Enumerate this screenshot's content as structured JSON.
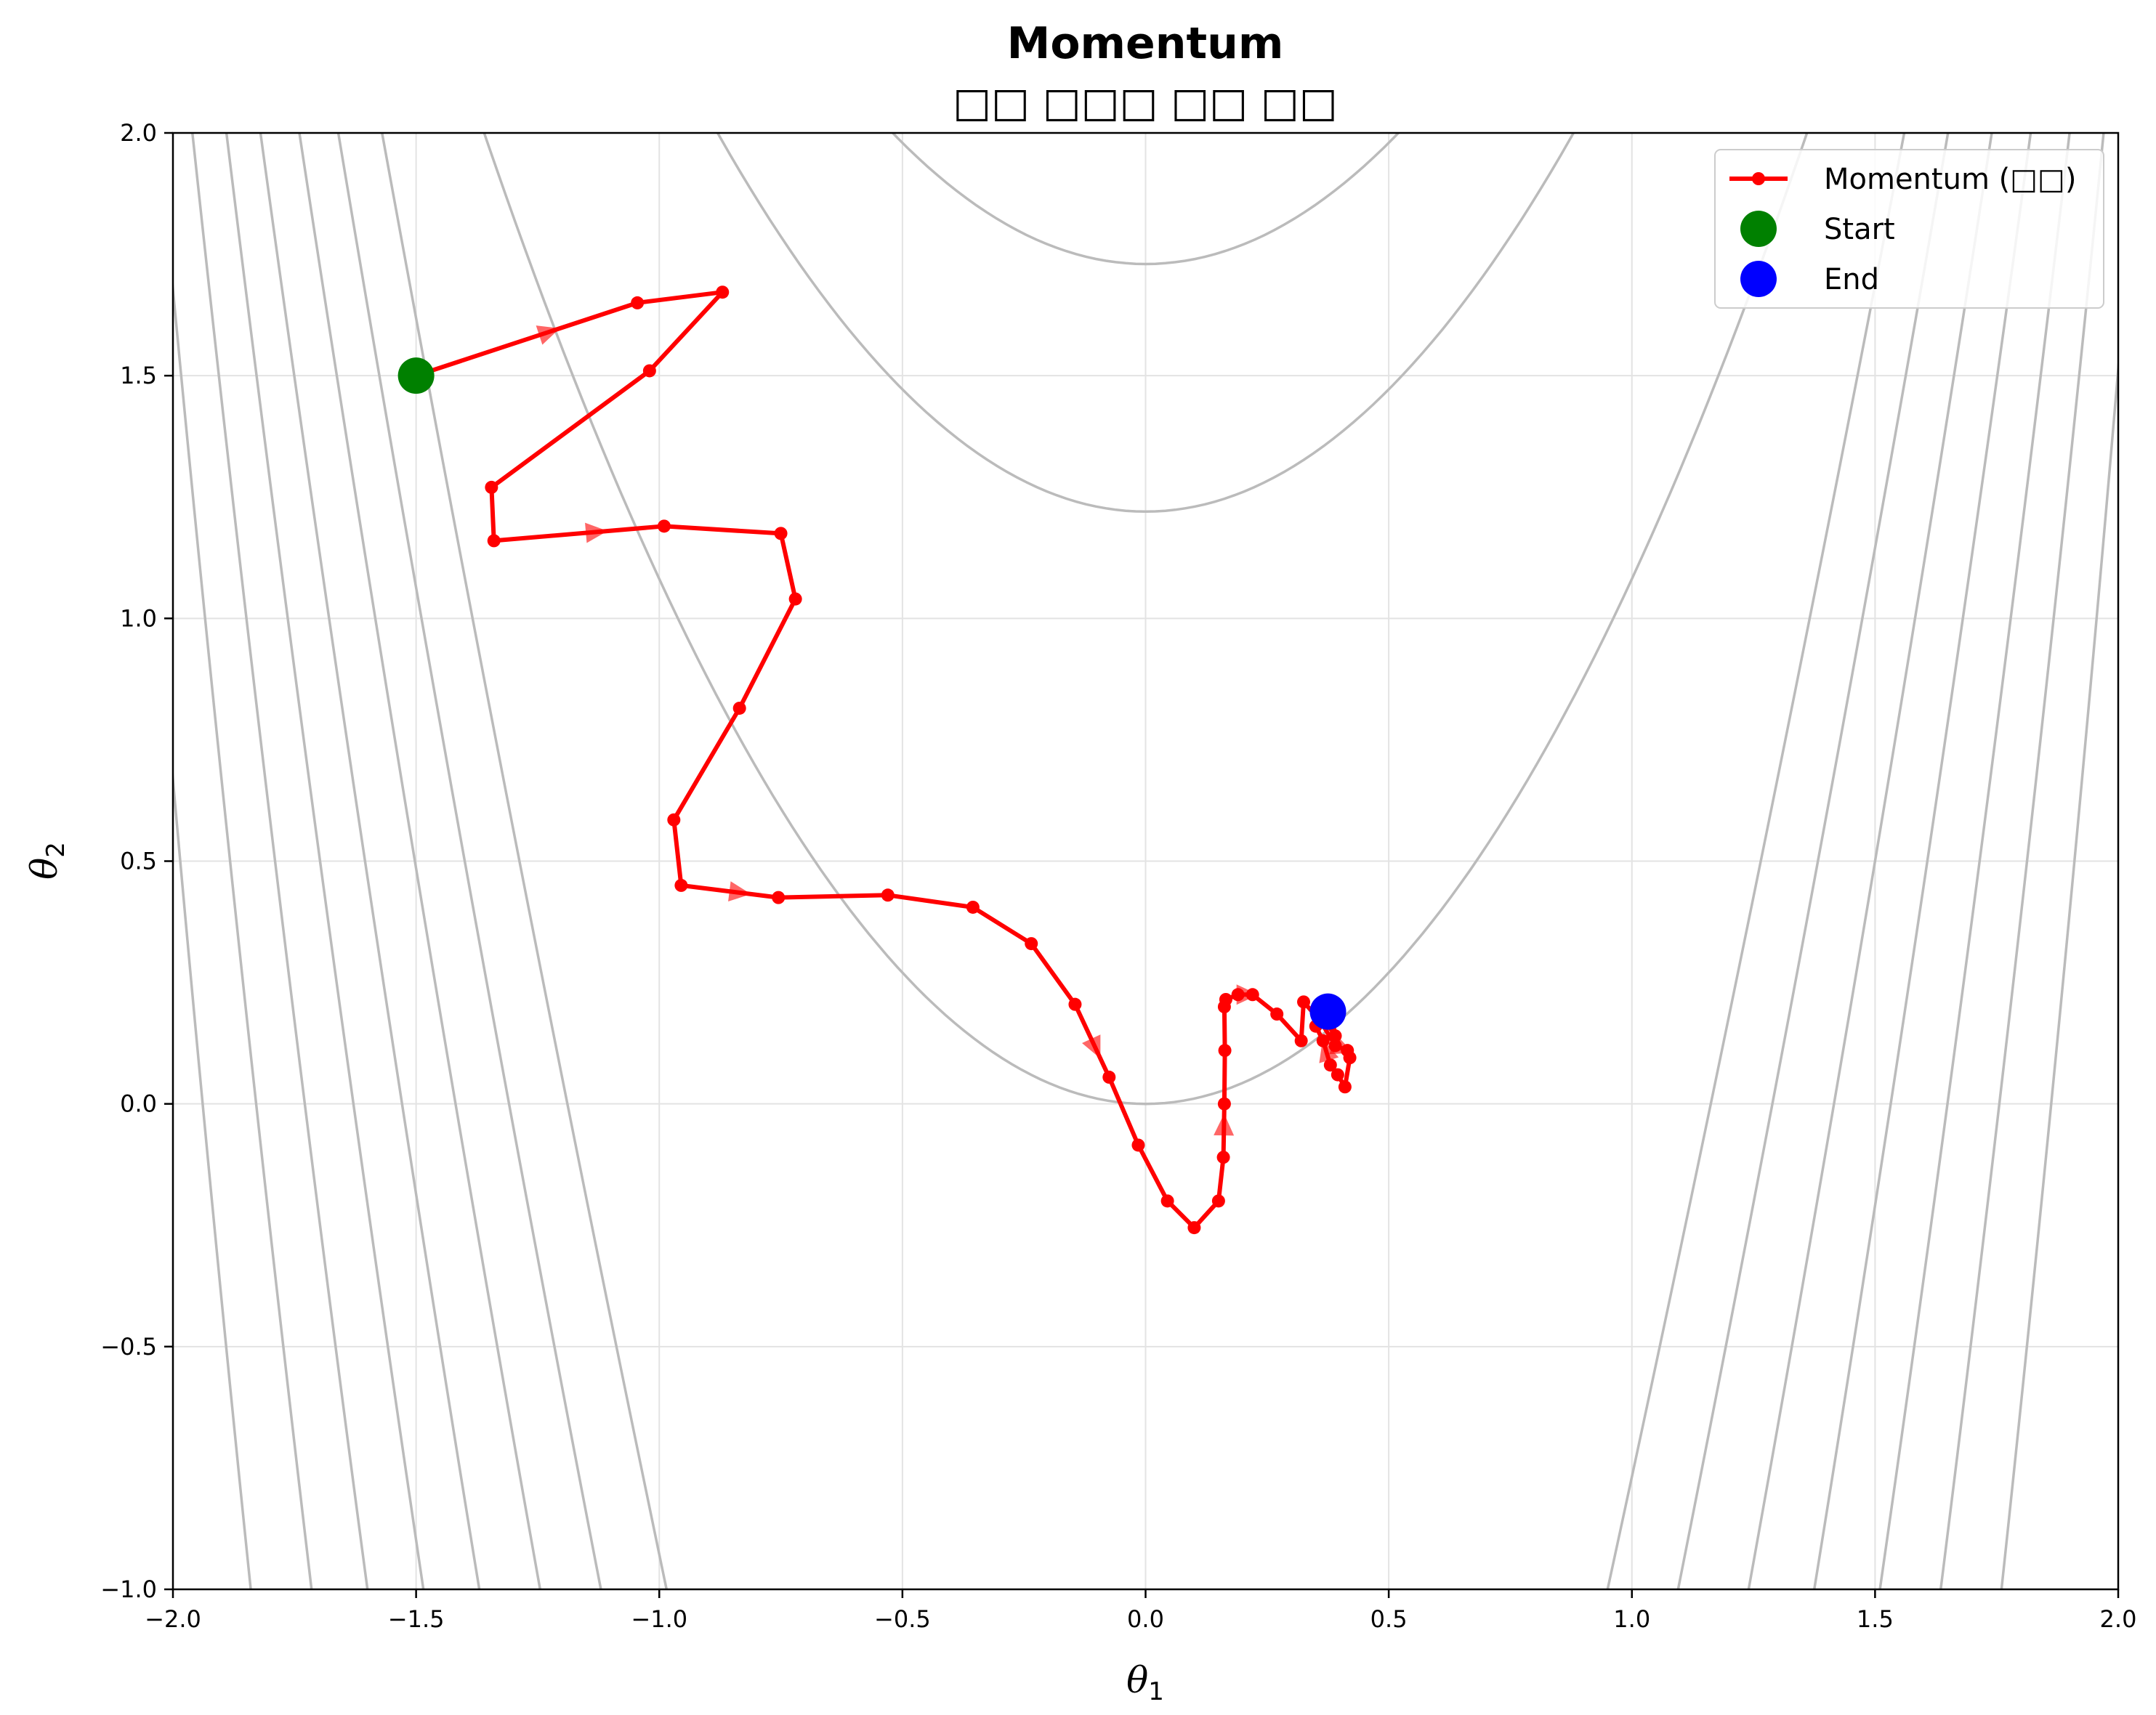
{
  "chart_data": {
    "type": "line",
    "title": "Momentum",
    "subtitle": "□□ □□□ □□ □□",
    "xlabel_symbol": "θ",
    "xlabel_subscript": "1",
    "ylabel_symbol": "θ",
    "ylabel_subscript": "2",
    "xlim": [
      -2.0,
      2.0
    ],
    "ylim": [
      -1.0,
      2.0
    ],
    "xticks": [
      -2.0,
      -1.5,
      -1.0,
      -0.5,
      0.0,
      0.5,
      1.0,
      1.5,
      2.0
    ],
    "xtick_labels": [
      "−2.0",
      "−1.5",
      "−1.0",
      "−0.5",
      "0.0",
      "0.5",
      "1.0",
      "1.5",
      "2.0"
    ],
    "yticks": [
      -1.0,
      -0.5,
      0.0,
      0.5,
      1.0,
      1.5,
      2.0
    ],
    "ytick_labels": [
      "−1.0",
      "−0.5",
      "0.0",
      "0.5",
      "1.0",
      "1.5",
      "2.0"
    ],
    "grid": true,
    "legend_position": "top-right",
    "legend": [
      {
        "label": "Momentum (□□)",
        "kind": "line-marker",
        "color": "#ff0000"
      },
      {
        "label": "Start",
        "kind": "marker",
        "color": "#008000"
      },
      {
        "label": "End",
        "kind": "marker",
        "color": "#0000ff"
      }
    ],
    "background_contours": {
      "color": "#bbbbbb",
      "function": "rosenbrock-like valley, centered near theta1 = 0",
      "levels": [
        {
          "type": "parabola",
          "vertex_y": 1.73,
          "x_at_top": 0.52
        },
        {
          "type": "parabola",
          "vertex_y": 1.22,
          "x_at_top": 0.88
        },
        {
          "type": "parabola",
          "vertex_y": 0.0,
          "x_at_top": 1.36
        }
      ]
    },
    "series": [
      {
        "name": "Momentum (□□)",
        "color": "#ff0000",
        "x": [
          -1.5,
          -1.045,
          -0.87,
          -1.02,
          -1.345,
          -1.34,
          -0.99,
          -0.75,
          -0.72,
          -0.835,
          -0.97,
          -0.955,
          -0.755,
          -0.53,
          -0.355,
          -0.235,
          -0.145,
          -0.075,
          -0.015,
          0.045,
          0.1,
          0.15,
          0.16,
          0.162,
          0.163,
          0.162,
          0.165,
          0.19,
          0.22,
          0.27,
          0.32,
          0.325,
          0.36,
          0.39,
          0.415,
          0.42,
          0.41,
          0.395,
          0.38,
          0.365,
          0.35,
          0.37,
          0.39,
          0.385,
          0.375
        ],
        "y": [
          1.5,
          1.65,
          1.672,
          1.51,
          1.27,
          1.16,
          1.19,
          1.175,
          1.04,
          0.815,
          0.585,
          0.45,
          0.425,
          0.43,
          0.405,
          0.33,
          0.205,
          0.055,
          -0.085,
          -0.2,
          -0.255,
          -0.2,
          -0.11,
          0.0,
          0.11,
          0.2,
          0.215,
          0.225,
          0.225,
          0.185,
          0.13,
          0.21,
          0.17,
          0.12,
          0.11,
          0.095,
          0.035,
          0.06,
          0.08,
          0.13,
          0.16,
          0.17,
          0.14,
          0.17,
          0.19
        ]
      }
    ],
    "start_point": {
      "x": -1.5,
      "y": 1.5
    },
    "end_point": {
      "x": 0.375,
      "y": 0.19
    }
  }
}
